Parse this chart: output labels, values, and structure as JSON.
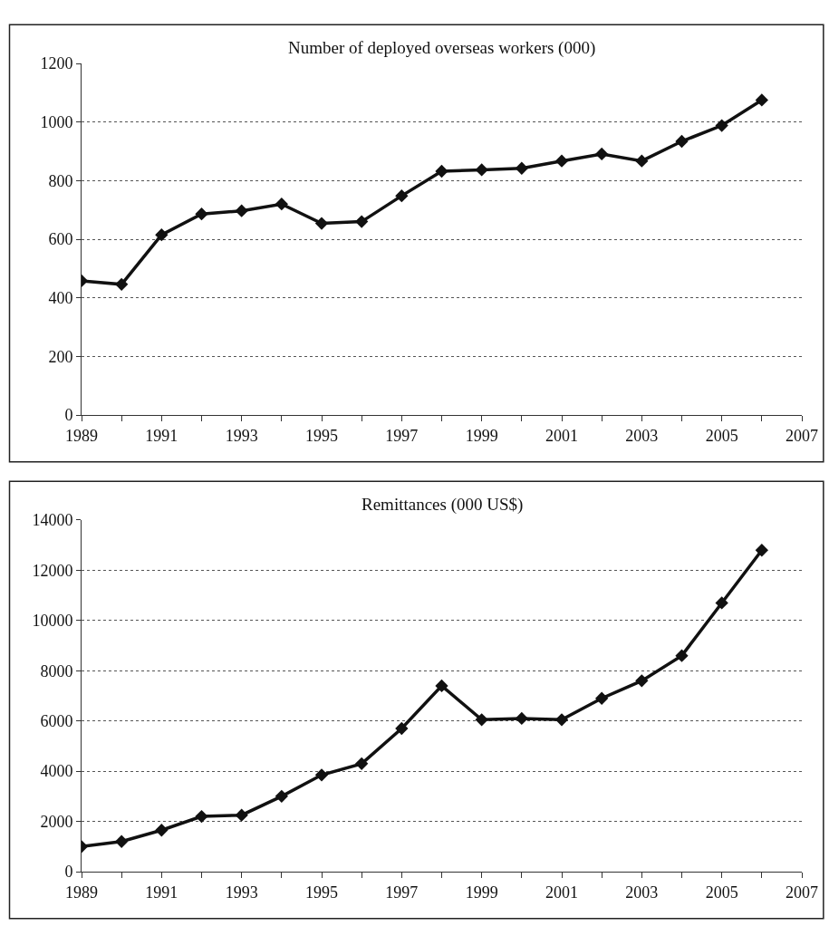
{
  "chart_data": [
    {
      "type": "line",
      "title": "Number of deployed overseas workers (000)",
      "x": [
        1989,
        1990,
        1991,
        1992,
        1993,
        1994,
        1995,
        1996,
        1997,
        1998,
        1999,
        2000,
        2001,
        2002,
        2003,
        2004,
        2005,
        2006
      ],
      "series": [
        {
          "color": "#111111",
          "values": [
            458,
            446,
            615,
            686,
            697,
            720,
            654,
            660,
            748,
            832,
            837,
            842,
            867,
            891,
            867,
            934,
            988,
            1075
          ]
        }
      ],
      "xlim": [
        1989,
        2007
      ],
      "xticks": [
        1989,
        {
          "value": 1990,
          "label": null
        },
        1991,
        {
          "value": 1992,
          "label": null
        },
        1993,
        {
          "value": 1994,
          "label": null
        },
        1995,
        {
          "value": 1996,
          "label": null
        },
        1997,
        {
          "value": 1998,
          "label": null
        },
        1999,
        {
          "value": 2000,
          "label": null
        },
        2001,
        {
          "value": 2002,
          "label": null
        },
        2003,
        {
          "value": 2004,
          "label": null
        },
        2005,
        {
          "value": 2006,
          "label": null
        },
        2007
      ],
      "ylim": [
        0,
        1200
      ],
      "yticks": [
        0,
        200,
        400,
        600,
        800,
        1000,
        1200
      ],
      "grid": "y",
      "marker": "diamond",
      "line_style": "solid"
    },
    {
      "type": "line",
      "title": "Remittances (000 US$)",
      "x": [
        1989,
        1990,
        1991,
        1992,
        1993,
        1994,
        1995,
        1996,
        1997,
        1998,
        1999,
        2000,
        2001,
        2002,
        2003,
        2004,
        2005,
        2006
      ],
      "series": [
        {
          "color": "#111111",
          "values": [
            1000,
            1200,
            1650,
            2200,
            2250,
            3000,
            3850,
            4300,
            5700,
            7400,
            6050,
            6100,
            6050,
            6900,
            7600,
            8600,
            10700,
            12800
          ]
        }
      ],
      "xlim": [
        1989,
        2007
      ],
      "xticks": [
        1989,
        {
          "value": 1990,
          "label": null
        },
        1991,
        {
          "value": 1992,
          "label": null
        },
        1993,
        {
          "value": 1994,
          "label": null
        },
        1995,
        {
          "value": 1996,
          "label": null
        },
        1997,
        {
          "value": 1998,
          "label": null
        },
        1999,
        {
          "value": 2000,
          "label": null
        },
        2001,
        {
          "value": 2002,
          "label": null
        },
        2003,
        {
          "value": 2004,
          "label": null
        },
        2005,
        {
          "value": 2006,
          "label": null
        },
        2007
      ],
      "ylim": [
        0,
        14000
      ],
      "yticks": [
        0,
        2000,
        4000,
        6000,
        8000,
        10000,
        12000,
        14000
      ],
      "grid": "y",
      "marker": "diamond",
      "line_style": "solid"
    }
  ]
}
